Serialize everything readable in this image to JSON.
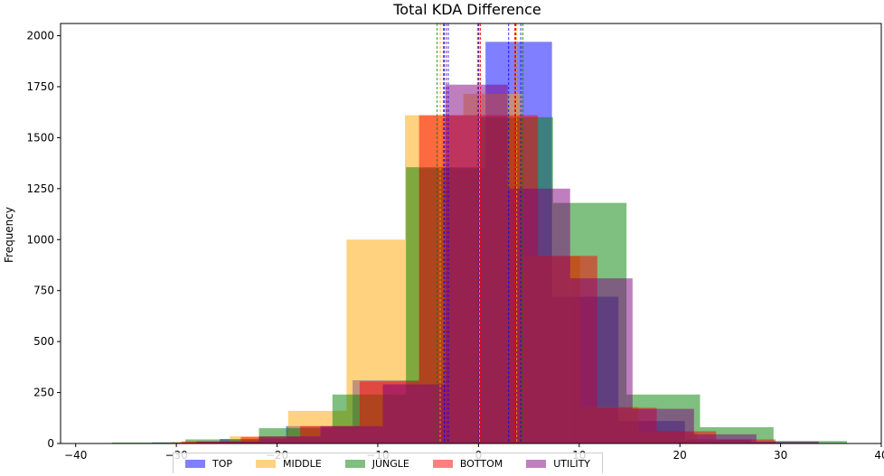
{
  "chart_data": {
    "type": "bar",
    "title": "Total KDA Difference",
    "xlabel": "",
    "ylabel": "Frequency",
    "xlim": [
      -41.5,
      40
    ],
    "ylim": [
      0,
      2060
    ],
    "xticks": [
      -40,
      -30,
      -20,
      -10,
      0,
      10,
      20,
      30,
      40
    ],
    "yticks": [
      0,
      250,
      500,
      750,
      1000,
      1250,
      1500,
      1750,
      2000
    ],
    "grid": false,
    "legend_position": "bottom",
    "series": [
      {
        "name": "TOP",
        "color": "#0000ff",
        "bins": [
          {
            "x0": -32.4,
            "x1": -25.7,
            "count": 5
          },
          {
            "x0": -25.7,
            "x1": -19.1,
            "count": 22
          },
          {
            "x0": -19.1,
            "x1": -12.5,
            "count": 85
          },
          {
            "x0": -12.5,
            "x1": -5.9,
            "count": 310
          },
          {
            "x0": -5.9,
            "x1": 0.7,
            "count": 1350
          },
          {
            "x0": 0.7,
            "x1": 7.3,
            "count": 1970
          },
          {
            "x0": 7.3,
            "x1": 13.9,
            "count": 720
          },
          {
            "x0": 13.9,
            "x1": 20.5,
            "count": 110
          },
          {
            "x0": 20.5,
            "x1": 27.1,
            "count": 20
          },
          {
            "x0": 27.1,
            "x1": 33.7,
            "count": 4
          }
        ]
      },
      {
        "name": "MIDDLE",
        "color": "#ffa500",
        "bins": [
          {
            "x0": -30.5,
            "x1": -24.7,
            "count": 8
          },
          {
            "x0": -24.7,
            "x1": -18.9,
            "count": 35
          },
          {
            "x0": -18.9,
            "x1": -13.1,
            "count": 160
          },
          {
            "x0": -13.1,
            "x1": -7.3,
            "count": 1000
          },
          {
            "x0": -7.3,
            "x1": -1.5,
            "count": 1610
          },
          {
            "x0": -1.5,
            "x1": 4.3,
            "count": 1715
          },
          {
            "x0": 4.3,
            "x1": 10.1,
            "count": 920
          },
          {
            "x0": 10.1,
            "x1": 15.9,
            "count": 180
          },
          {
            "x0": 15.9,
            "x1": 21.7,
            "count": 55
          },
          {
            "x0": 21.7,
            "x1": 27.5,
            "count": 10
          }
        ]
      },
      {
        "name": "JUNGLE",
        "color": "#008000",
        "bins": [
          {
            "x0": -36.4,
            "x1": -29.1,
            "count": 5
          },
          {
            "x0": -29.1,
            "x1": -21.8,
            "count": 20
          },
          {
            "x0": -21.8,
            "x1": -14.5,
            "count": 75
          },
          {
            "x0": -14.5,
            "x1": -7.2,
            "count": 240
          },
          {
            "x0": -7.2,
            "x1": 0.1,
            "count": 1355
          },
          {
            "x0": 0.1,
            "x1": 7.4,
            "count": 1600
          },
          {
            "x0": 7.4,
            "x1": 14.7,
            "count": 1180
          },
          {
            "x0": 14.7,
            "x1": 22.0,
            "count": 240
          },
          {
            "x0": 22.0,
            "x1": 29.3,
            "count": 80
          },
          {
            "x0": 29.3,
            "x1": 36.6,
            "count": 12
          }
        ]
      },
      {
        "name": "BOTTOM",
        "color": "#ff0000",
        "bins": [
          {
            "x0": -29.5,
            "x1": -23.6,
            "count": 10
          },
          {
            "x0": -23.6,
            "x1": -17.7,
            "count": 32
          },
          {
            "x0": -17.7,
            "x1": -11.8,
            "count": 85
          },
          {
            "x0": -11.8,
            "x1": -5.9,
            "count": 305
          },
          {
            "x0": -5.9,
            "x1": 0.0,
            "count": 1610
          },
          {
            "x0": 0.0,
            "x1": 5.9,
            "count": 1610
          },
          {
            "x0": 5.9,
            "x1": 11.8,
            "count": 920
          },
          {
            "x0": 11.8,
            "x1": 17.7,
            "count": 175
          },
          {
            "x0": 17.7,
            "x1": 23.6,
            "count": 60
          },
          {
            "x0": 23.6,
            "x1": 29.5,
            "count": 20
          }
        ]
      },
      {
        "name": "UTILITY",
        "color": "#800080",
        "bins": [
          {
            "x0": -28.0,
            "x1": -21.8,
            "count": 10
          },
          {
            "x0": -21.8,
            "x1": -15.7,
            "count": 35
          },
          {
            "x0": -15.7,
            "x1": -9.5,
            "count": 85
          },
          {
            "x0": -9.5,
            "x1": -3.3,
            "count": 290
          },
          {
            "x0": -3.3,
            "x1": 2.9,
            "count": 1760
          },
          {
            "x0": 2.9,
            "x1": 9.1,
            "count": 1250
          },
          {
            "x0": 9.1,
            "x1": 15.3,
            "count": 810
          },
          {
            "x0": 15.3,
            "x1": 21.4,
            "count": 170
          },
          {
            "x0": 21.4,
            "x1": 27.6,
            "count": 45
          },
          {
            "x0": 27.6,
            "x1": 33.8,
            "count": 10
          }
        ]
      }
    ],
    "reference_lines": [
      {
        "x": -3.4,
        "color": "#0000ff"
      },
      {
        "x": -3.0,
        "color": "#0000ff"
      },
      {
        "x": 0.0,
        "color": "#0000ff"
      },
      {
        "x": 3.0,
        "color": "#0000ff"
      },
      {
        "x": 4.2,
        "color": "#0000ff"
      },
      {
        "x": -3.8,
        "color": "#ffa500"
      },
      {
        "x": 0.1,
        "color": "#ffa500"
      },
      {
        "x": 3.8,
        "color": "#ffa500"
      },
      {
        "x": -4.1,
        "color": "#008000"
      },
      {
        "x": -0.1,
        "color": "#008000"
      },
      {
        "x": 4.4,
        "color": "#008000"
      },
      {
        "x": -3.5,
        "color": "#ff0000"
      },
      {
        "x": 0.2,
        "color": "#ff0000"
      },
      {
        "x": 3.6,
        "color": "#ff0000"
      },
      {
        "x": -3.2,
        "color": "#800080"
      },
      {
        "x": 0.0,
        "color": "#800080"
      },
      {
        "x": 3.7,
        "color": "#800080"
      }
    ]
  }
}
